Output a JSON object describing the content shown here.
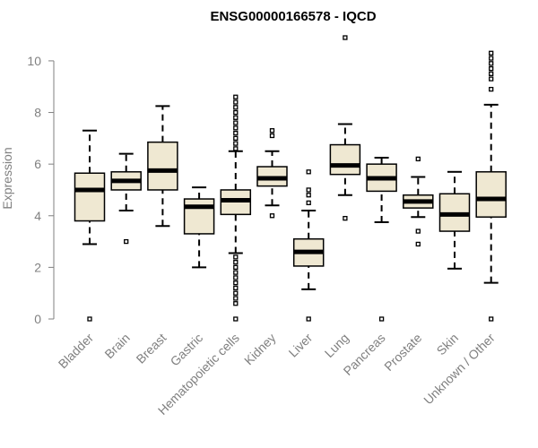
{
  "chart_data": {
    "type": "boxplot",
    "title": "ENSG00000166578 - IQCD",
    "ylabel": "Expression",
    "xlabel": "",
    "ylim": [
      0,
      10.9
    ],
    "yticks": [
      0,
      2,
      4,
      6,
      8,
      10
    ],
    "grid": false,
    "colors": {
      "box_fill": "#efe8d2",
      "stroke": "#000000",
      "axis": "#808080"
    },
    "categories": [
      "Bladder",
      "Brain",
      "Breast",
      "Gastric",
      "Hematopoietic cells",
      "Kidney",
      "Liver",
      "Lung",
      "Pancreas",
      "Prostate",
      "Skin",
      "Unknown / Other"
    ],
    "boxes": [
      {
        "category": "Bladder",
        "whisker_low": 2.9,
        "q1": 3.8,
        "median": 5.0,
        "q3": 5.65,
        "whisker_high": 7.3,
        "outliers": [
          0.0
        ]
      },
      {
        "category": "Brain",
        "whisker_low": 4.2,
        "q1": 5.0,
        "median": 5.35,
        "q3": 5.7,
        "whisker_high": 6.4,
        "outliers": [
          3.0
        ]
      },
      {
        "category": "Breast",
        "whisker_low": 3.6,
        "q1": 5.0,
        "median": 5.75,
        "q3": 6.85,
        "whisker_high": 8.25,
        "outliers": []
      },
      {
        "category": "Gastric",
        "whisker_low": 2.0,
        "q1": 3.3,
        "median": 4.35,
        "q3": 4.65,
        "whisker_high": 5.1,
        "outliers": []
      },
      {
        "category": "Hematopoietic cells",
        "whisker_low": 2.55,
        "q1": 4.05,
        "median": 4.6,
        "q3": 5.0,
        "whisker_high": 6.5,
        "outliers": [
          0.0,
          0.6,
          0.8,
          1.0,
          1.2,
          1.4,
          1.6,
          1.8,
          2.0,
          2.2,
          2.4,
          6.6,
          6.8,
          7.0,
          7.2,
          7.4,
          7.6,
          7.8,
          8.0,
          8.2,
          8.4,
          8.6
        ]
      },
      {
        "category": "Kidney",
        "whisker_low": 4.4,
        "q1": 5.15,
        "median": 5.45,
        "q3": 5.9,
        "whisker_high": 6.5,
        "outliers": [
          4.0,
          7.1,
          7.3
        ]
      },
      {
        "category": "Liver",
        "whisker_low": 1.15,
        "q1": 2.05,
        "median": 2.6,
        "q3": 3.1,
        "whisker_high": 4.2,
        "outliers": [
          0.0,
          4.5,
          4.8,
          5.0,
          5.7
        ]
      },
      {
        "category": "Lung",
        "whisker_low": 4.8,
        "q1": 5.6,
        "median": 5.95,
        "q3": 6.75,
        "whisker_high": 7.55,
        "outliers": [
          3.9,
          10.9
        ]
      },
      {
        "category": "Pancreas",
        "whisker_low": 3.75,
        "q1": 4.95,
        "median": 5.45,
        "q3": 6.0,
        "whisker_high": 6.25,
        "outliers": [
          0.0
        ]
      },
      {
        "category": "Prostate",
        "whisker_low": 3.95,
        "q1": 4.3,
        "median": 4.55,
        "q3": 4.8,
        "whisker_high": 5.5,
        "outliers": [
          2.9,
          3.4,
          6.2
        ]
      },
      {
        "category": "Skin",
        "whisker_low": 1.95,
        "q1": 3.4,
        "median": 4.05,
        "q3": 4.85,
        "whisker_high": 5.7,
        "outliers": []
      },
      {
        "category": "Unknown / Other",
        "whisker_low": 1.4,
        "q1": 3.95,
        "median": 4.65,
        "q3": 5.7,
        "whisker_high": 8.3,
        "outliers": [
          0.0,
          8.9,
          9.3,
          9.5,
          9.7,
          9.9,
          10.1,
          10.3
        ]
      }
    ]
  }
}
